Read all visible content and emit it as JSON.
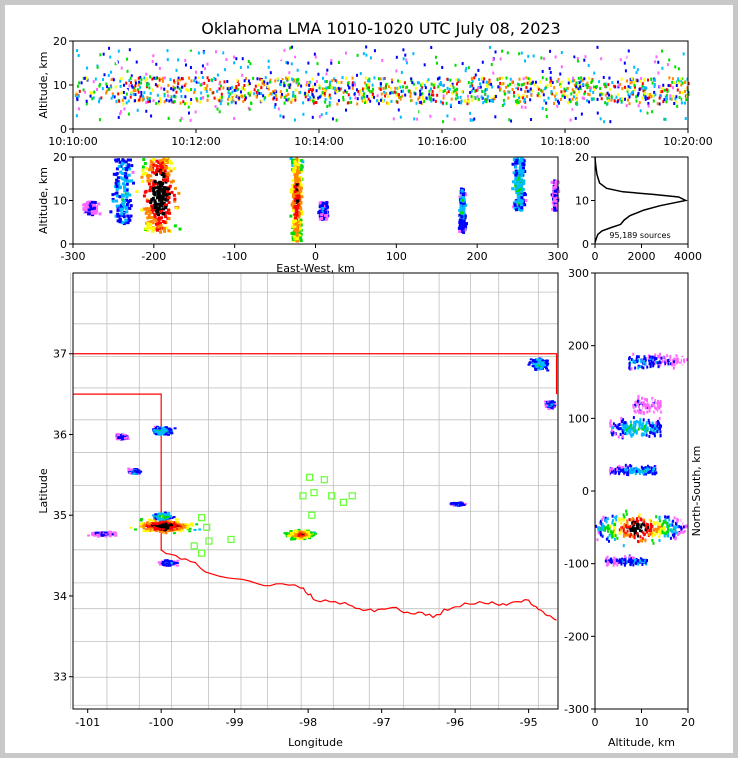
{
  "chart_data": [
    {
      "type": "heatmap",
      "panel": "altitude-time",
      "title": "Oklahoma LMA 1010-1020 UTC July 08, 2023",
      "ylabel": "Altitude, km",
      "xlabel": "",
      "ylim": [
        0,
        20
      ],
      "y_ticks": [
        "0",
        "10",
        "20"
      ],
      "x_ticks": [
        "10:10:00",
        "10:12:00",
        "10:14:00",
        "10:16:00",
        "10:18:00",
        "10:20:00"
      ],
      "source_band_km": [
        2,
        19
      ],
      "core_band_km": [
        6,
        12
      ]
    },
    {
      "type": "heatmap",
      "panel": "altitude-eastwest",
      "xlabel": "East-West, km",
      "ylabel": "Altitude, km",
      "xlim": [
        -300,
        300
      ],
      "ylim": [
        0,
        20
      ],
      "x_ticks": [
        "-300",
        "-200",
        "-100",
        "0",
        "100",
        "200",
        "300"
      ],
      "y_ticks": [
        "0",
        "10",
        "20"
      ],
      "clusters": [
        {
          "x": -195,
          "z_min": 3,
          "z_max": 20,
          "w": 35,
          "intensity": 1.0
        },
        {
          "x": -240,
          "z_min": 5,
          "z_max": 20,
          "w": 20,
          "intensity": 0.35
        },
        {
          "x": -280,
          "z_min": 7,
          "z_max": 10,
          "w": 15,
          "intensity": 0.15
        },
        {
          "x": -25,
          "z_min": 1,
          "z_max": 20,
          "w": 10,
          "intensity": 0.85
        },
        {
          "x": 8,
          "z_min": 6,
          "z_max": 10,
          "w": 8,
          "intensity": 0.25
        },
        {
          "x": 180,
          "z_min": 3,
          "z_max": 13,
          "w": 6,
          "intensity": 0.35
        },
        {
          "x": 250,
          "z_min": 8,
          "z_max": 20,
          "w": 12,
          "intensity": 0.4
        },
        {
          "x": 295,
          "z_min": 8,
          "z_max": 15,
          "w": 6,
          "intensity": 0.2
        }
      ]
    },
    {
      "type": "line",
      "panel": "altitude-histogram",
      "annotation": "95,189 sources",
      "xlim": [
        0,
        4000
      ],
      "ylim": [
        0,
        20
      ],
      "x_ticks": [
        "0",
        "2000",
        "4000"
      ],
      "y_ticks": [
        "0",
        "10",
        "20"
      ],
      "x": [
        0,
        40,
        120,
        300,
        700,
        1100,
        1250,
        1500,
        2100,
        2800,
        3900,
        3600,
        2500,
        1200,
        500,
        200,
        80,
        20,
        0
      ],
      "y": [
        0.3,
        1.0,
        2.2,
        3.0,
        3.8,
        4.5,
        5.5,
        6.5,
        7.8,
        8.8,
        10.0,
        10.8,
        11.4,
        12.0,
        12.8,
        14.0,
        16.0,
        18.5,
        20.0
      ]
    },
    {
      "type": "heatmap",
      "panel": "plan-view-map",
      "xlabel": "Longitude",
      "ylabel": "Latitude",
      "xlim": [
        -101.2,
        -94.6
      ],
      "ylim": [
        32.6,
        38.0
      ],
      "x_ticks": [
        "-101",
        "-100",
        "-99",
        "-98",
        "-97",
        "-96",
        "-95"
      ],
      "y_ticks": [
        "33",
        "34",
        "35",
        "36",
        "37"
      ],
      "state_border_color": "#ff0000",
      "county_line_color": "#c0c0c0",
      "station_color": "#66ff33",
      "stations": [
        [
          -97.98,
          35.47
        ],
        [
          -97.78,
          35.44
        ],
        [
          -97.92,
          35.28
        ],
        [
          -98.07,
          35.24
        ],
        [
          -97.68,
          35.24
        ],
        [
          -97.52,
          35.16
        ],
        [
          -97.4,
          35.24
        ],
        [
          -97.95,
          35.0
        ],
        [
          -99.45,
          34.97
        ],
        [
          -99.38,
          34.85
        ],
        [
          -99.35,
          34.68
        ],
        [
          -99.45,
          34.53
        ],
        [
          -99.05,
          34.7
        ],
        [
          -99.55,
          34.62
        ]
      ],
      "clusters": [
        {
          "lon": -99.98,
          "lat": 34.88,
          "w": 0.55,
          "h": 0.12,
          "intensity": 1.0
        },
        {
          "lon": -100.0,
          "lat": 35.0,
          "w": 0.2,
          "h": 0.06,
          "intensity": 0.5
        },
        {
          "lon": -100.0,
          "lat": 36.06,
          "w": 0.2,
          "h": 0.07,
          "intensity": 0.45
        },
        {
          "lon": -100.55,
          "lat": 35.98,
          "w": 0.12,
          "h": 0.05,
          "intensity": 0.25
        },
        {
          "lon": -100.38,
          "lat": 35.55,
          "w": 0.12,
          "h": 0.05,
          "intensity": 0.35
        },
        {
          "lon": -99.92,
          "lat": 34.42,
          "w": 0.18,
          "h": 0.05,
          "intensity": 0.3
        },
        {
          "lon": -100.8,
          "lat": 34.78,
          "w": 0.3,
          "h": 0.05,
          "intensity": 0.2
        },
        {
          "lon": -98.12,
          "lat": 34.77,
          "w": 0.28,
          "h": 0.08,
          "intensity": 0.85
        },
        {
          "lon": -95.98,
          "lat": 35.15,
          "w": 0.15,
          "h": 0.03,
          "intensity": 0.3
        },
        {
          "lon": -94.87,
          "lat": 36.88,
          "w": 0.18,
          "h": 0.1,
          "intensity": 0.4
        },
        {
          "lon": -94.72,
          "lat": 36.38,
          "w": 0.1,
          "h": 0.07,
          "intensity": 0.3
        }
      ]
    },
    {
      "type": "heatmap",
      "panel": "northsouth-altitude",
      "xlabel": "Altitude, km",
      "ylabel": "North-South, km",
      "xlim": [
        0,
        20
      ],
      "ylim": [
        -300,
        300
      ],
      "x_ticks": [
        "0",
        "10",
        "20"
      ],
      "y_ticks": [
        "-300",
        "-200",
        "-100",
        "0",
        "100",
        "200",
        "300"
      ],
      "clusters": [
        {
          "y": -50,
          "z_min": 0,
          "z_max": 20,
          "h": 30,
          "intensity": 1.0
        },
        {
          "y": -95,
          "z_min": 2,
          "z_max": 11,
          "h": 10,
          "intensity": 0.3
        },
        {
          "y": 30,
          "z_min": 3,
          "z_max": 13,
          "h": 10,
          "intensity": 0.35
        },
        {
          "y": 88,
          "z_min": 3,
          "z_max": 14,
          "h": 20,
          "intensity": 0.4
        },
        {
          "y": 180,
          "z_min": 7,
          "z_max": 20,
          "h": 15,
          "intensity": 0.3
        },
        {
          "y": 120,
          "z_min": 8,
          "z_max": 14,
          "h": 20,
          "intensity": 0.12
        }
      ]
    }
  ]
}
